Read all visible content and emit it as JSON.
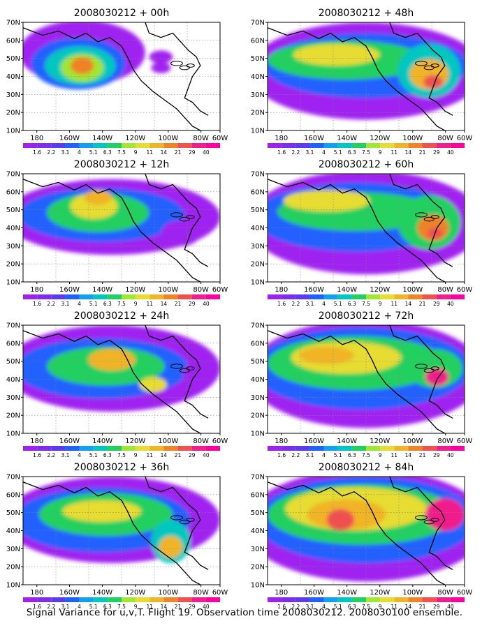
{
  "caption": "Signal Variance for u,v,T. Flight 19. Observation time 2008030212. 2008030100 ensemble.",
  "lon_ticks": [
    "180",
    "160W",
    "140W",
    "120W",
    "100W",
    "80W",
    "60W"
  ],
  "lat_ticks": [
    "70N",
    "60N",
    "50N",
    "40N",
    "30N",
    "20N",
    "10N"
  ],
  "colorbar": {
    "labels": [
      "1.6",
      "2.2",
      "3.1",
      "4",
      "5.1",
      "6.3",
      "7.5",
      "9",
      "11",
      "14",
      "21",
      "29",
      "40"
    ],
    "colors": [
      "#a020f0",
      "#7e2cf0",
      "#5a3cf0",
      "#2060ff",
      "#10a0f0",
      "#00c8c0",
      "#20d060",
      "#a0e632",
      "#e6dc32",
      "#f0b428",
      "#f08228",
      "#f05050",
      "#f01e8c",
      "#ff00a0"
    ]
  },
  "panels": [
    {
      "title": "2008030212 + 00h"
    },
    {
      "title": "2008030212 + 48h"
    },
    {
      "title": "2008030212 + 12h"
    },
    {
      "title": "2008030212 + 60h"
    },
    {
      "title": "2008030212 + 24h"
    },
    {
      "title": "2008030212 + 72h"
    },
    {
      "title": "2008030212 + 36h"
    },
    {
      "title": "2008030212 + 84h"
    }
  ]
}
